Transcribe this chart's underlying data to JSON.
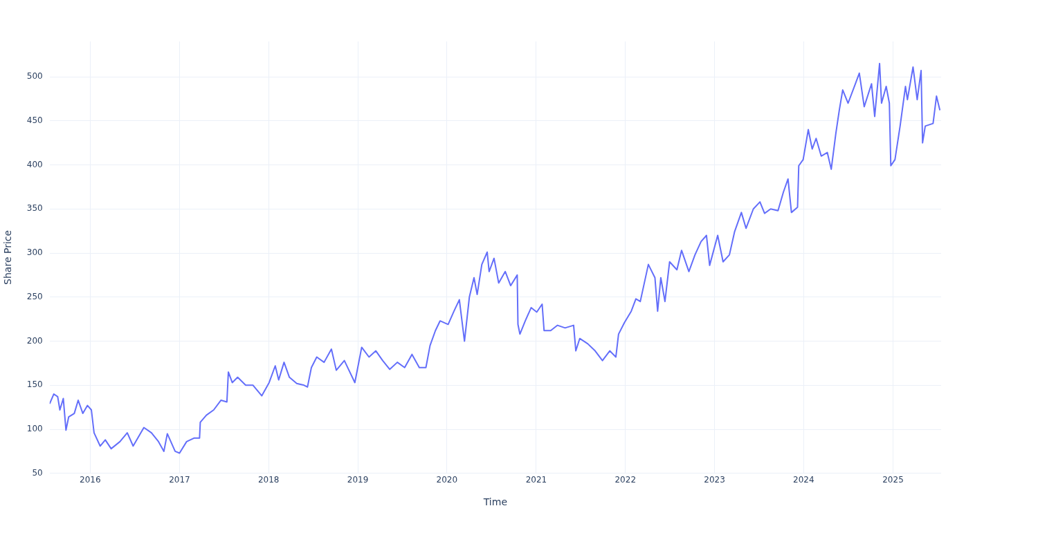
{
  "chart_data": {
    "type": "line",
    "xlabel": "Time",
    "ylabel": "Share Price",
    "xlim": [
      "2015-07-19",
      "2025-07-17"
    ],
    "xticks": [
      "2016",
      "2017",
      "2018",
      "2019",
      "2020",
      "2021",
      "2022",
      "2023",
      "2024",
      "2025"
    ],
    "ylim": [
      50,
      540
    ],
    "yticks": [
      50,
      100,
      150,
      200,
      250,
      300,
      350,
      400,
      450,
      500
    ],
    "grid": true,
    "legend": false,
    "marker": "none",
    "line_style": "solid",
    "series": [
      {
        "color": "#636efa",
        "x": [
          "2015-07-19",
          "2015-08-05",
          "2015-08-21",
          "2015-08-30",
          "2015-09-13",
          "2015-09-24",
          "2015-10-05",
          "2015-10-28",
          "2015-11-13",
          "2015-12-02",
          "2015-12-21",
          "2016-01-06",
          "2016-01-17",
          "2016-02-11",
          "2016-03-03",
          "2016-03-27",
          "2016-05-02",
          "2016-06-01",
          "2016-06-25",
          "2016-07-14",
          "2016-08-08",
          "2016-09-08",
          "2016-10-07",
          "2016-10-29",
          "2016-11-12",
          "2016-12-14",
          "2017-01-01",
          "2017-01-30",
          "2017-03-01",
          "2017-03-24",
          "2017-03-27",
          "2017-04-21",
          "2017-05-21",
          "2017-06-20",
          "2017-07-14",
          "2017-07-20",
          "2017-08-05",
          "2017-08-27",
          "2017-09-29",
          "2017-10-29",
          "2017-12-04",
          "2018-01-03",
          "2018-01-28",
          "2018-02-11",
          "2018-03-05",
          "2018-03-27",
          "2018-04-26",
          "2018-05-26",
          "2018-06-09",
          "2018-06-25",
          "2018-07-17",
          "2018-08-16",
          "2018-09-15",
          "2018-10-05",
          "2018-11-07",
          "2018-12-20",
          "2019-01-17",
          "2019-02-16",
          "2019-03-16",
          "2019-04-13",
          "2019-05-12",
          "2019-06-12",
          "2019-07-12",
          "2019-08-11",
          "2019-09-10",
          "2019-10-07",
          "2019-10-24",
          "2019-11-15",
          "2019-12-04",
          "2020-01-06",
          "2020-01-30",
          "2020-02-21",
          "2020-03-13",
          "2020-04-02",
          "2020-04-21",
          "2020-05-04",
          "2020-05-23",
          "2020-06-14",
          "2020-06-22",
          "2020-07-12",
          "2020-07-31",
          "2020-08-27",
          "2020-09-18",
          "2020-10-15",
          "2020-10-18",
          "2020-10-26",
          "2020-11-17",
          "2020-12-11",
          "2021-01-03",
          "2021-01-25",
          "2021-02-02",
          "2021-03-01",
          "2021-03-29",
          "2021-04-29",
          "2021-06-03",
          "2021-06-12",
          "2021-06-28",
          "2021-07-31",
          "2021-08-30",
          "2021-09-29",
          "2021-10-29",
          "2021-11-23",
          "2021-12-04",
          "2021-12-28",
          "2022-01-25",
          "2022-02-13",
          "2022-03-03",
          "2022-04-05",
          "2022-05-02",
          "2022-05-13",
          "2022-05-26",
          "2022-06-12",
          "2022-07-01",
          "2022-07-31",
          "2022-08-19",
          "2022-09-18",
          "2022-10-13",
          "2022-11-07",
          "2022-11-29",
          "2022-12-12",
          "2023-01-14",
          "2023-02-05",
          "2023-03-03",
          "2023-03-24",
          "2023-04-21",
          "2023-05-10",
          "2023-06-09",
          "2023-07-06",
          "2023-07-25",
          "2023-08-19",
          "2023-09-18",
          "2023-10-10",
          "2023-10-29",
          "2023-11-12",
          "2023-12-07",
          "2023-12-12",
          "2023-12-30",
          "2024-01-20",
          "2024-02-05",
          "2024-02-21",
          "2024-03-13",
          "2024-04-07",
          "2024-04-23",
          "2024-05-12",
          "2024-05-26",
          "2024-06-09",
          "2024-07-01",
          "2024-07-31",
          "2024-08-16",
          "2024-09-05",
          "2024-10-05",
          "2024-10-18",
          "2024-11-07",
          "2024-11-15",
          "2024-12-04",
          "2024-12-17",
          "2024-12-23",
          "2025-01-09",
          "2025-01-30",
          "2025-02-21",
          "2025-03-01",
          "2025-03-24",
          "2025-04-10",
          "2025-04-26",
          "2025-05-02",
          "2025-05-13",
          "2025-06-14",
          "2025-06-28",
          "2025-07-12"
        ],
        "values": [
          129,
          140,
          137,
          122,
          135,
          99,
          114,
          118,
          133,
          118,
          127,
          122,
          96,
          81,
          88,
          78,
          86,
          96,
          81,
          90,
          102,
          96,
          86,
          75,
          95,
          75,
          73,
          86,
          90,
          90,
          108,
          116,
          122,
          133,
          131,
          165,
          153,
          159,
          150,
          150,
          138,
          153,
          172,
          156,
          176,
          159,
          152,
          150,
          148,
          170,
          182,
          176,
          191,
          167,
          178,
          153,
          193,
          182,
          189,
          178,
          168,
          176,
          170,
          185,
          170,
          170,
          195,
          212,
          223,
          219,
          234,
          247,
          200,
          250,
          272,
          253,
          287,
          301,
          279,
          294,
          266,
          279,
          263,
          275,
          219,
          208,
          223,
          238,
          233,
          242,
          212,
          212,
          218,
          215,
          218,
          189,
          203,
          197,
          189,
          178,
          189,
          182,
          208,
          221,
          234,
          248,
          245,
          287,
          272,
          234,
          272,
          245,
          290,
          281,
          303,
          279,
          298,
          313,
          320,
          286,
          320,
          290,
          298,
          324,
          346,
          328,
          350,
          358,
          345,
          350,
          348,
          369,
          384,
          346,
          352,
          399,
          406,
          440,
          418,
          430,
          410,
          414,
          395,
          436,
          462,
          485,
          470,
          492,
          504,
          466,
          492,
          455,
          515,
          470,
          489,
          470,
          399,
          406,
          444,
          489,
          474,
          511,
          474,
          507,
          425,
          444,
          447,
          478,
          462
        ]
      }
    ]
  }
}
